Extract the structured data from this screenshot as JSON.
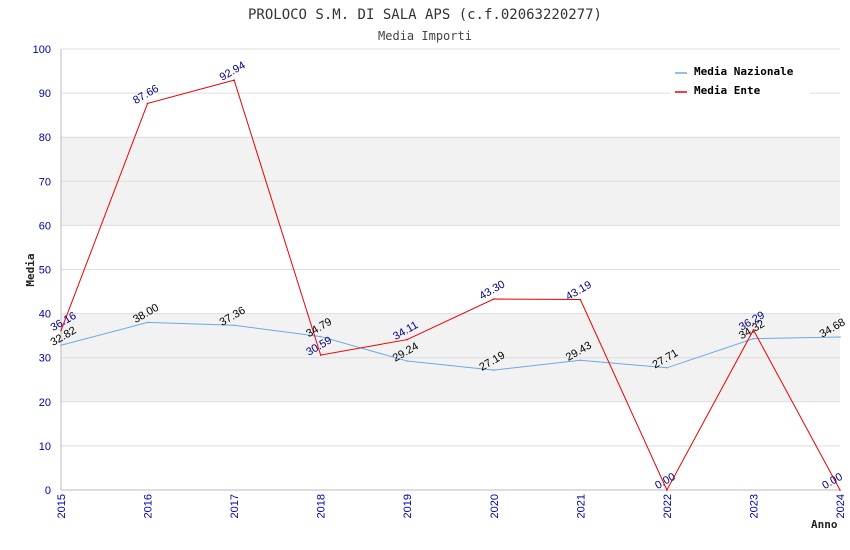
{
  "chart_data": {
    "type": "line",
    "title": "PROLOCO S.M. DI SALA APS (c.f.02063220277)",
    "subtitle": "Media Importi",
    "xlabel": "Anno",
    "ylabel": "Media",
    "ylim": [
      0,
      100
    ],
    "y_ticks": [
      "0",
      "10",
      "20",
      "30",
      "40",
      "50",
      "60",
      "70",
      "80",
      "90",
      "100"
    ],
    "categories": [
      "2015",
      "2016",
      "2017",
      "2018",
      "2019",
      "2020",
      "2021",
      "2022",
      "2023",
      "2024"
    ],
    "grid": true,
    "legend_position": "top-right",
    "series": [
      {
        "name": "Media Nazionale",
        "color": "#6aaae6",
        "label_color": "#000000",
        "values": [
          32.82,
          38.0,
          37.36,
          34.79,
          29.24,
          27.19,
          29.43,
          27.71,
          34.32,
          34.68
        ],
        "labels": [
          "32.82",
          "38.00",
          "37.36",
          "34.79",
          "29.24",
          "27.19",
          "29.43",
          "27.71",
          "34.32",
          "34.68"
        ]
      },
      {
        "name": "Media Ente",
        "color": "#ee0000",
        "label_color": "#000080",
        "values": [
          36.16,
          87.66,
          92.94,
          30.59,
          34.11,
          43.3,
          43.19,
          0.0,
          36.29,
          0.0
        ],
        "labels": [
          "36.16",
          "87.66",
          "92.94",
          "30.59",
          "34.11",
          "43.30",
          "43.19",
          "0.00",
          "36.29",
          "0.00"
        ]
      }
    ]
  }
}
